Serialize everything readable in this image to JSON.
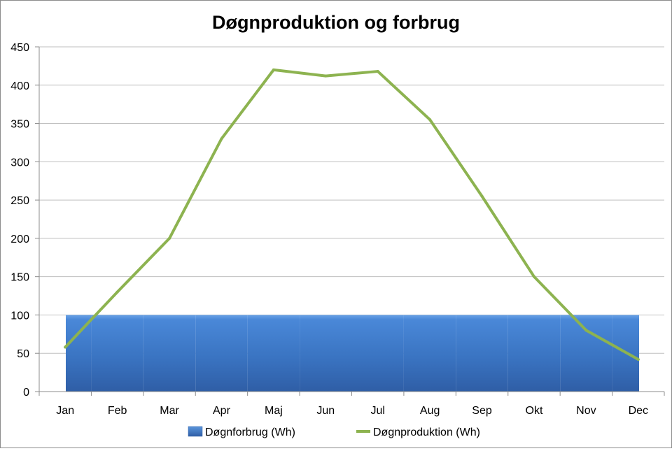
{
  "chart_data": {
    "type": "bar+line",
    "title": "Døgnproduktion og forbrug",
    "xlabel": "",
    "ylabel": "",
    "categories": [
      "Jan",
      "Feb",
      "Mar",
      "Apr",
      "Maj",
      "Jun",
      "Jul",
      "Aug",
      "Sep",
      "Okt",
      "Nov",
      "Dec"
    ],
    "ylim": [
      0,
      450
    ],
    "yticks": [
      "0",
      "50",
      "100",
      "150",
      "200",
      "250",
      "300",
      "350",
      "400",
      "450"
    ],
    "grid": true,
    "legend_position": "bottom",
    "series": [
      {
        "name": "Døgnforbrug (Wh)",
        "type": "area-bar",
        "color": "#3a78c8",
        "values": [
          100,
          100,
          100,
          100,
          100,
          100,
          100,
          100,
          100,
          100,
          100,
          100
        ]
      },
      {
        "name": "Døgnproduktion (Wh)",
        "type": "line",
        "color": "#8db350",
        "values": [
          58,
          130,
          200,
          330,
          420,
          412,
          418,
          355,
          255,
          150,
          80,
          42
        ]
      }
    ]
  }
}
